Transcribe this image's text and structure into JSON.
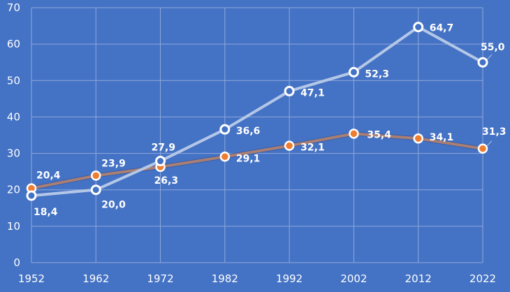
{
  "chart_data": {
    "type": "line",
    "title": "",
    "xlabel": "",
    "ylabel": "",
    "x": [
      1952,
      1962,
      1972,
      1982,
      1992,
      2002,
      2012,
      2022
    ],
    "ylim": [
      0,
      70
    ],
    "yticks": [
      "0",
      "10",
      "20",
      "30",
      "40",
      "50",
      "60",
      "70"
    ],
    "xticks": [
      "1952",
      "1962",
      "1972",
      "1982",
      "1992",
      "2002",
      "2012",
      "2022"
    ],
    "grid": true,
    "legend": "none",
    "colors": {
      "background": "#4472c4",
      "grid": "#8fa9dc",
      "series_light": "#b4c7e7",
      "series_orange_line": "#a97f74",
      "series_orange_marker": "#ed7d31",
      "marker_ring": "#ffffff"
    },
    "series": [
      {
        "values": [
          18.4,
          20.0,
          27.9,
          36.6,
          47.1,
          52.3,
          64.7,
          55.0
        ],
        "labels": [
          "18,4",
          "20,0",
          "27,9",
          "36,6",
          "47,1",
          "52,3",
          "64,7",
          "55,0"
        ],
        "style": "light"
      },
      {
        "values": [
          20.4,
          23.9,
          26.3,
          29.1,
          32.1,
          35.4,
          34.1,
          31.3
        ],
        "labels": [
          "20,4",
          "23,9",
          "26,3",
          "29,1",
          "32,1",
          "35,4",
          "34,1",
          "31,3"
        ],
        "style": "orange"
      }
    ]
  }
}
